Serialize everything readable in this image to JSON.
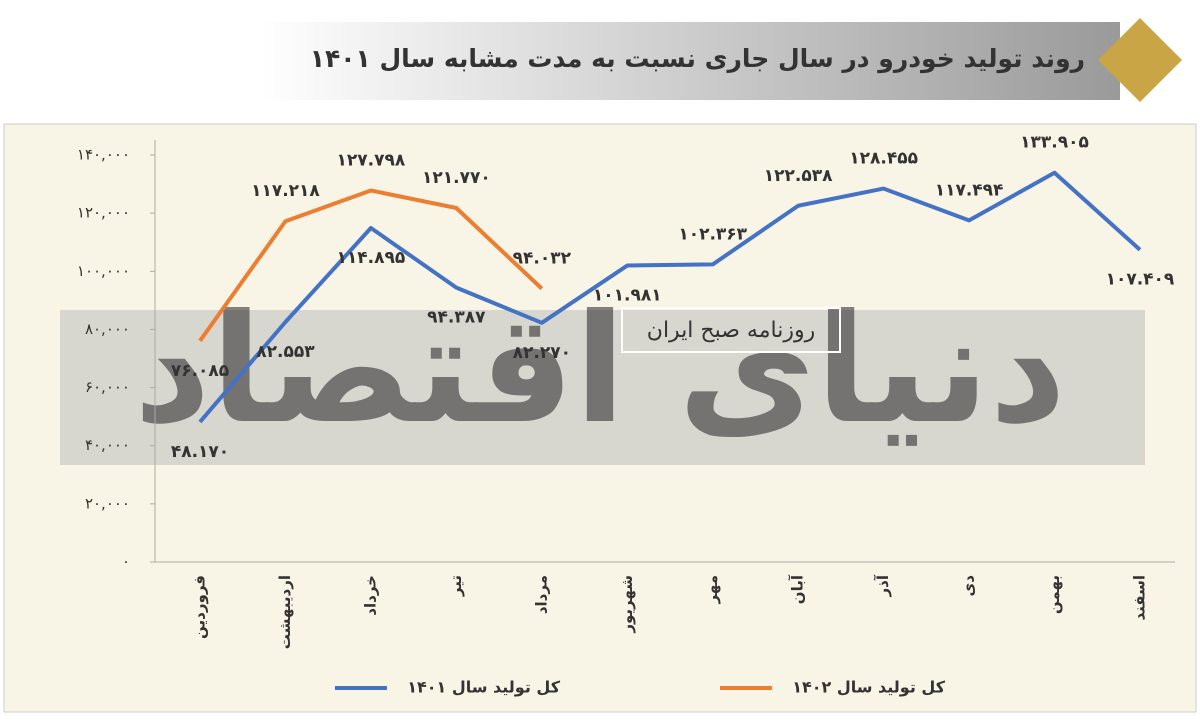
{
  "chart_data": {
    "type": "line",
    "title": "روند تولید خودرو در سال جاری نسبت به مدت مشابه سال ۱۴۰۱",
    "watermark": "دنیای اقتصاد",
    "watermark_caption": "روزنامه صبح ایران",
    "categories": [
      "فروردین",
      "اردیبهشت",
      "خرداد",
      "تیر",
      "مرداد",
      "شهریور",
      "مهر",
      "آبان",
      "آذر",
      "دی",
      "بهمن",
      "اسفند"
    ],
    "series": [
      {
        "name": "کل تولید سال ۱۴۰۱",
        "color": "#4472c4",
        "values": [
          48170,
          82553,
          114895,
          94387,
          82270,
          101981,
          102363,
          122538,
          128455,
          117494,
          133905,
          107409
        ],
        "value_labels": [
          "۴۸.۱۷۰",
          "۸۲.۵۵۳",
          "۱۱۴.۸۹۵",
          "۹۴.۳۸۷",
          "۸۲.۲۷۰",
          "۱۰۱.۹۸۱",
          "۱۰۲.۳۶۳",
          "۱۲۲.۵۳۸",
          "۱۲۸.۴۵۵",
          "۱۱۷.۴۹۴",
          "۱۳۳.۹۰۵",
          "۱۰۷.۴۰۹"
        ]
      },
      {
        "name": "کل تولید سال ۱۴۰۲",
        "color": "#ed7d31",
        "values": [
          76085,
          117218,
          127798,
          121770,
          94032,
          null,
          null,
          null,
          null,
          null,
          null,
          null
        ],
        "value_labels": [
          "۷۶.۰۸۵",
          "۱۱۷.۲۱۸",
          "۱۲۷.۷۹۸",
          "۱۲۱.۷۷۰",
          "۹۴.۰۳۲",
          null,
          null,
          null,
          null,
          null,
          null,
          null
        ]
      }
    ],
    "ylim": [
      0,
      140000
    ],
    "yticks": [
      {
        "value": 0,
        "label": "۰"
      },
      {
        "value": 20000,
        "label": "۲۰,۰۰۰"
      },
      {
        "value": 40000,
        "label": "۴۰,۰۰۰"
      },
      {
        "value": 60000,
        "label": "۶۰,۰۰۰"
      },
      {
        "value": 80000,
        "label": "۸۰,۰۰۰"
      },
      {
        "value": 100000,
        "label": "۱۰۰,۰۰۰"
      },
      {
        "value": 120000,
        "label": "۱۲۰,۰۰۰"
      },
      {
        "value": 140000,
        "label": "۱۴۰,۰۰۰"
      }
    ],
    "grid": false
  }
}
